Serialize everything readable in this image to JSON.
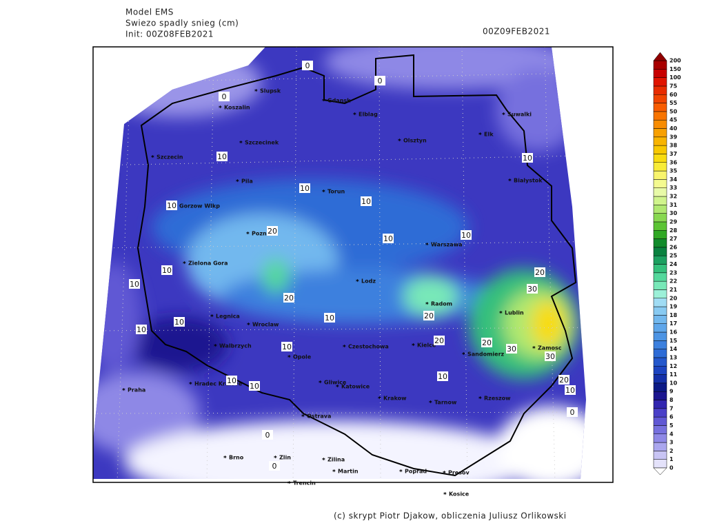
{
  "header": {
    "model": "Model EMS",
    "field": "Swiezo spadly snieg (cm)",
    "init": "Init: 00Z08FEB2021",
    "valid": "00Z09FEB2021"
  },
  "cities": [
    "Slupsk",
    "Koszalin",
    "Gdansk",
    "Elblag",
    "Szczecinek",
    "Olsztyn",
    "Elk",
    "Suwalki",
    "Szczecin",
    "Pila",
    "Torun",
    "Bialystok",
    "Gorzow Wlkp",
    "Poznan",
    "Warszawa",
    "Zielona Gora",
    "Lodz",
    "Radom",
    "Lublin",
    "Legnica",
    "Wroclaw",
    "Walbrzych",
    "Opole",
    "Czestochowa",
    "Kielce",
    "Sandomierz",
    "Zamosc",
    "Hradec Kralove",
    "Gliwice",
    "Katowice",
    "Praha",
    "Krakow",
    "Tarnow",
    "Rzeszow",
    "Ostrava",
    "Brno",
    "Zlin",
    "Zilina",
    "Martin",
    "Poprad",
    "Presov",
    "Trencin",
    "Kosice"
  ],
  "contour_labels": [
    0,
    0,
    0,
    0,
    0,
    0,
    10,
    10,
    10,
    10,
    10,
    10,
    10,
    10,
    10,
    10,
    10,
    10,
    10,
    10,
    10,
    10,
    10,
    20,
    20,
    20,
    20,
    20,
    20,
    20,
    30,
    30,
    30
  ],
  "colorbar": {
    "levels": [
      0,
      1,
      2,
      3,
      4,
      5,
      6,
      7,
      8,
      9,
      10,
      11,
      12,
      13,
      14,
      15,
      16,
      17,
      18,
      19,
      20,
      21,
      22,
      23,
      24,
      25,
      26,
      27,
      28,
      29,
      30,
      31,
      32,
      33,
      34,
      35,
      36,
      37,
      38,
      39,
      40,
      45,
      50,
      55,
      60,
      75,
      100,
      150,
      200
    ],
    "colors": [
      "#e4e2fa",
      "#c8c4f4",
      "#aaa6ee",
      "#8e88e6",
      "#7670de",
      "#6058d4",
      "#4a40c8",
      "#3226b0",
      "#1c1690",
      "#0c1a86",
      "#1430a8",
      "#1c44c0",
      "#2458cc",
      "#2e6cd6",
      "#3c80de",
      "#4c94e4",
      "#5ea6ea",
      "#72b8ee",
      "#88caf2",
      "#a0dcf4",
      "#9cf0d8",
      "#78e8b8",
      "#54d89c",
      "#34c07c",
      "#1ca060",
      "#0a8240",
      "#128c2c",
      "#30a824",
      "#5cc434",
      "#88d850",
      "#b0e870",
      "#d0f48c",
      "#e8faa8",
      "#f4fa90",
      "#f8f46c",
      "#f8ec38",
      "#f8dc10",
      "#f8c800",
      "#f8b400",
      "#f8a000",
      "#f88c00",
      "#f87400",
      "#f85c00",
      "#f04400",
      "#e82c00",
      "#e01400",
      "#c80000",
      "#a80000"
    ],
    "over_color": "#900000",
    "under_color": "#ffffff"
  },
  "footer": "(c) skrypt Piotr Djakow, obliczenia Juliusz Orlikowski"
}
